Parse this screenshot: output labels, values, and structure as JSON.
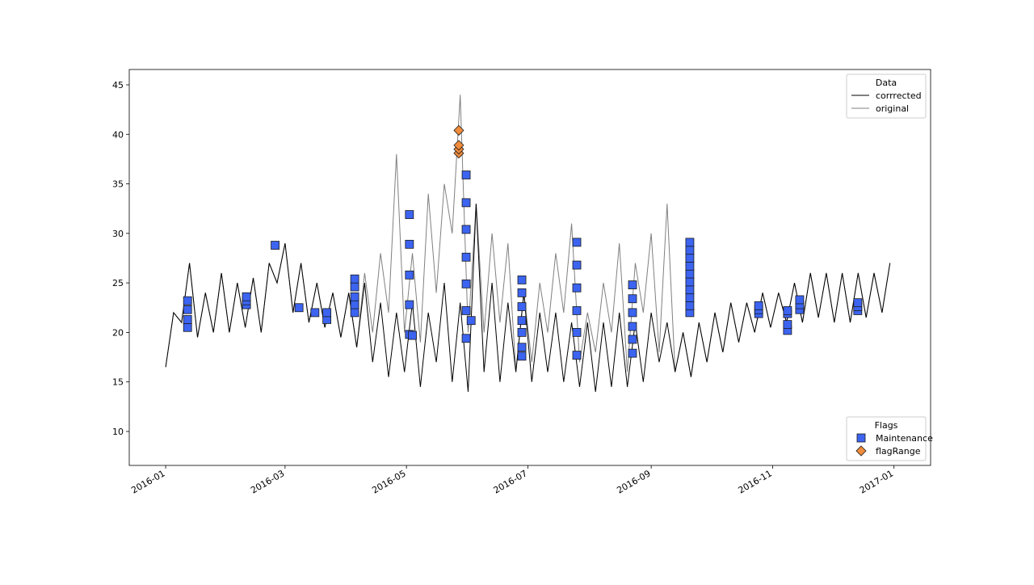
{
  "chart_data": {
    "type": "line",
    "x": [
      0,
      4,
      8,
      12,
      16,
      20,
      24,
      28,
      32,
      36,
      40,
      44,
      48,
      52,
      56,
      60,
      64,
      68,
      72,
      76,
      80,
      84,
      88,
      92,
      96,
      100,
      104,
      108,
      112,
      116,
      120,
      124,
      128,
      132,
      136,
      140,
      144,
      148,
      152,
      156,
      160,
      164,
      168,
      172,
      176,
      180,
      184,
      188,
      192,
      196,
      200,
      204,
      208,
      212,
      216,
      220,
      224,
      228,
      232,
      236,
      240,
      244,
      248,
      252,
      256,
      260,
      264,
      268,
      272,
      276,
      280,
      284,
      288,
      292,
      296,
      300,
      304,
      308,
      312,
      316,
      320,
      324,
      328,
      332,
      336,
      340,
      344,
      348,
      352,
      356,
      360,
      364
    ],
    "series": [
      {
        "name": "corrrected",
        "color": "#000000",
        "values": [
          16.5,
          22,
          21,
          27,
          19.5,
          24,
          20,
          26,
          20,
          25,
          20.5,
          25.5,
          20,
          27,
          25,
          29,
          22,
          27,
          21,
          25,
          20.5,
          24,
          19.5,
          24,
          18.5,
          25,
          17,
          23,
          15.5,
          22,
          16,
          23,
          14.5,
          22,
          17,
          25,
          15,
          23,
          14,
          33,
          16,
          25,
          15,
          23,
          16,
          24,
          15,
          22,
          16,
          22,
          15,
          21,
          14.5,
          21,
          14,
          21,
          14.5,
          22,
          14.5,
          21,
          15,
          22,
          17,
          21,
          16,
          20,
          15.5,
          21,
          17,
          22,
          18,
          23,
          19,
          23,
          20,
          24,
          20.5,
          24,
          21,
          25,
          21,
          26,
          21.5,
          26,
          21,
          26,
          21,
          26,
          21.5,
          26,
          22,
          27
        ]
      },
      {
        "name": "original",
        "color": "#808080",
        "values": [
          16.5,
          22,
          21,
          27,
          19.5,
          24,
          20,
          26,
          20,
          25,
          20.5,
          25.5,
          20,
          27,
          25,
          29,
          22,
          27,
          21,
          25,
          20.5,
          24,
          19.5,
          24,
          18.5,
          26,
          20,
          28,
          22,
          38,
          20,
          28,
          19,
          34,
          24,
          35,
          30,
          44,
          20,
          33,
          20,
          30,
          21,
          29,
          16,
          24,
          17,
          25,
          20,
          28,
          22,
          31,
          17,
          22,
          18,
          25,
          20,
          29,
          16,
          27,
          22,
          30,
          18,
          33,
          16,
          20,
          15.5,
          21,
          17,
          22,
          18,
          23,
          19,
          23,
          20,
          24,
          20.5,
          24,
          21,
          25,
          21,
          26,
          21.5,
          26,
          21,
          26,
          21,
          26,
          21.5,
          26,
          22,
          27
        ]
      }
    ],
    "flags": [
      {
        "name": "Maintenance",
        "color": "#3c64f0",
        "marker": "square",
        "x": [
          11,
          11,
          11,
          11,
          40.6,
          40.6,
          40.6,
          55,
          67,
          75,
          81,
          81,
          95,
          95,
          95,
          95,
          95,
          122.5,
          122.5,
          122.5,
          122.5,
          122.5,
          124,
          151,
          151,
          151,
          151,
          151,
          151,
          151,
          153.5,
          179,
          179,
          179,
          179,
          179,
          179,
          179,
          206.6,
          206.6,
          206.6,
          206.6,
          206.6,
          206.6,
          234.6,
          234.6,
          234.6,
          234.6,
          234.6,
          234.6,
          263.4,
          263.4,
          263.4,
          263.4,
          263.4,
          263.4,
          263.4,
          263.4,
          263.4,
          263.4,
          298,
          298,
          298,
          312.5,
          312.5,
          312.5,
          312.5,
          318.6,
          318.6,
          318.6,
          347.8,
          347.8,
          347.8
        ],
        "values": [
          20.5,
          21.3,
          22.3,
          23.2,
          22.8,
          23.2,
          23.6,
          28.8,
          22.5,
          22,
          21.3,
          22,
          22,
          22.8,
          23.6,
          24.6,
          25.4,
          19.8,
          22.8,
          25.8,
          28.9,
          31.9,
          19.7,
          19.4,
          22.2,
          24.9,
          27.6,
          30.4,
          33.1,
          35.9,
          21.2,
          17.6,
          18.5,
          20,
          21.2,
          22.6,
          24,
          25.3,
          17.7,
          20,
          22.2,
          24.5,
          26.8,
          29.1,
          17.9,
          19.3,
          20.6,
          22,
          23.4,
          24.8,
          22,
          22.7,
          23.5,
          24.3,
          25.1,
          25.9,
          26.7,
          27.5,
          28.3,
          29.1,
          21.9,
          22.3,
          22.7,
          20.2,
          20.8,
          21.9,
          22.2,
          22.3,
          22.8,
          23.3,
          22.2,
          22.6,
          23
        ]
      },
      {
        "name": "flagRange",
        "color": "#f08c3c",
        "marker": "diamond",
        "x": [
          147.3,
          147.3,
          147.3,
          147.3
        ],
        "values": [
          38.1,
          38.5,
          38.9,
          40.4
        ]
      }
    ],
    "series_legend_title": "Data",
    "series_legend_loc": "upper right",
    "flags_legend_title": "Flags",
    "flags_legend_loc": "lower right",
    "xlim": [
      -18.3,
      384.4
    ],
    "ylim": [
      6.57,
      46.55
    ],
    "xticks": [
      {
        "value": 0,
        "label": "2016-01"
      },
      {
        "value": 60,
        "label": "2016-03"
      },
      {
        "value": 121,
        "label": "2016-05"
      },
      {
        "value": 182,
        "label": "2016-07"
      },
      {
        "value": 244,
        "label": "2016-09"
      },
      {
        "value": 305,
        "label": "2016-11"
      },
      {
        "value": 366,
        "label": "2017-01"
      }
    ],
    "yticks": [
      10,
      15,
      20,
      25,
      30,
      35,
      40,
      45
    ]
  }
}
